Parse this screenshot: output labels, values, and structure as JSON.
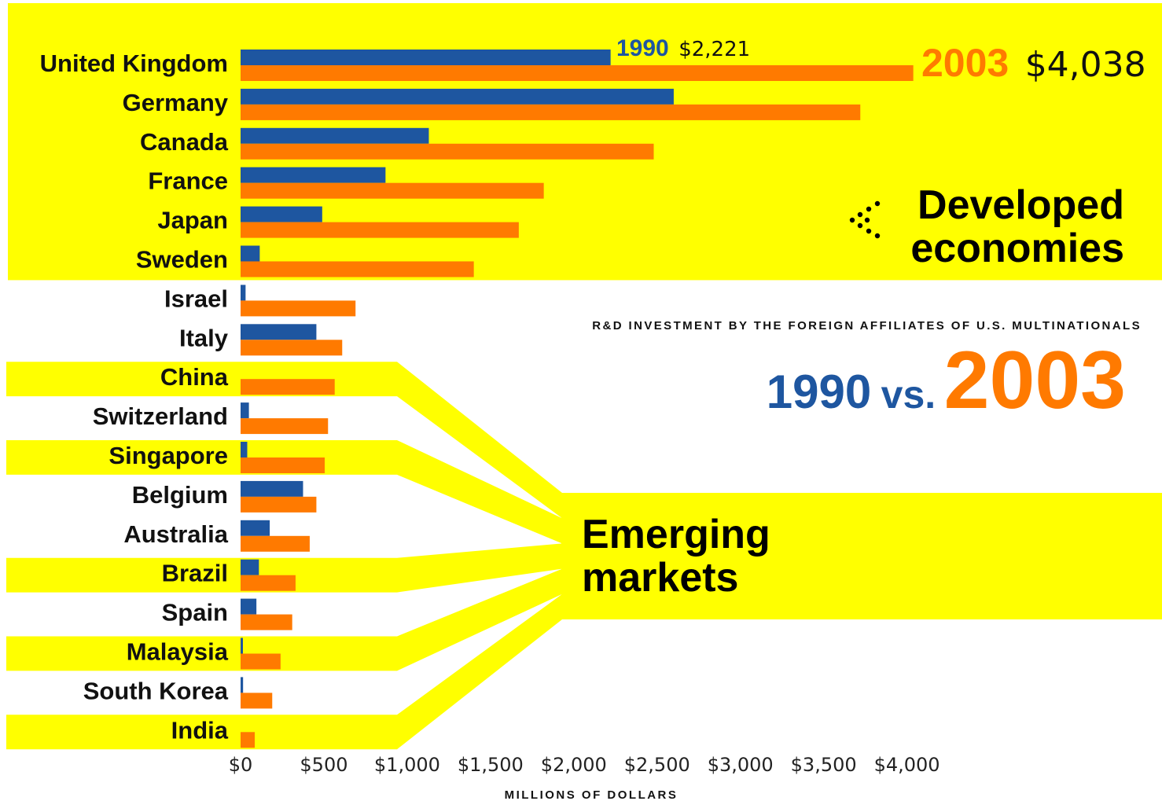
{
  "colors": {
    "highlight": "#ffff00",
    "series_1990": "#1e56a0",
    "series_2003": "#ff7a00"
  },
  "title": {
    "subtitle": "R&D INVESTMENT BY THE FOREIGN AFFILIATES OF U.S. MULTINATIONALS",
    "part1": "1990",
    "part2": "vs.",
    "part3": "2003"
  },
  "groups": {
    "developed_line1": "Developed",
    "developed_line2": "economies",
    "emerging_line1": "Emerging",
    "emerging_line2": "markets"
  },
  "annotations": {
    "year_1990": "1990",
    "value_1990": "$2,221",
    "year_2003": "2003",
    "value_2003": "$4,038"
  },
  "chart_data": {
    "type": "bar",
    "orientation": "horizontal",
    "categories": [
      "United Kingdom",
      "Germany",
      "Canada",
      "France",
      "Japan",
      "Sweden",
      "Israel",
      "Italy",
      "China",
      "Switzerland",
      "Singapore",
      "Belgium",
      "Australia",
      "Brazil",
      "Spain",
      "Malaysia",
      "South Korea",
      "India"
    ],
    "series": [
      {
        "name": "1990",
        "values": [
          2221,
          2600,
          1130,
          870,
          490,
          115,
          30,
          455,
          0,
          50,
          40,
          375,
          175,
          110,
          95,
          12,
          15,
          0
        ]
      },
      {
        "name": "2003",
        "values": [
          4038,
          3720,
          2480,
          1820,
          1670,
          1400,
          690,
          610,
          565,
          525,
          505,
          455,
          415,
          330,
          310,
          240,
          190,
          85
        ]
      }
    ],
    "category_groups": {
      "developed": [
        "United Kingdom",
        "Germany",
        "Canada",
        "France",
        "Japan",
        "Sweden"
      ],
      "emerging": [
        "China",
        "Singapore",
        "Brazil",
        "Malaysia",
        "India"
      ]
    },
    "xlabel": "MILLIONS OF DOLLARS",
    "xlim": [
      0,
      4300
    ],
    "xticks": [
      0,
      500,
      1000,
      1500,
      2000,
      2500,
      3000,
      3500,
      4000
    ],
    "xtick_labels": [
      "$0",
      "$500",
      "$1,000",
      "$1,500",
      "$2,000",
      "$2,500",
      "$3,000",
      "$3,500",
      "$4,000"
    ],
    "grid": false,
    "legend": "none"
  }
}
